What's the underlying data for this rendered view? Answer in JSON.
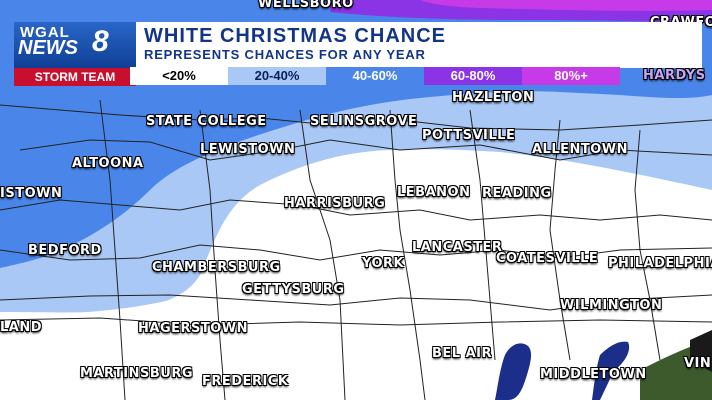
{
  "header": {
    "station_line1": "WGAL",
    "station_line2": "NEWS",
    "station_number": "8",
    "team": "STORM TEAM",
    "title": "WHITE CHRISTMAS CHANCE",
    "subtitle": "REPRESENTS CHANCES FOR ANY YEAR"
  },
  "legend": [
    {
      "label": "<20%",
      "color": "#ffffff",
      "text_color": "#000000"
    },
    {
      "label": "20-40%",
      "color": "#a9c8f5",
      "text_color": "#0a1f5c"
    },
    {
      "label": "40-60%",
      "color": "#4a86ea",
      "text_color": "#ffffff"
    },
    {
      "label": "60-80%",
      "color": "#8a34e6",
      "text_color": "#ffffff"
    },
    {
      "label": "80%+",
      "color": "#c73ae8",
      "text_color": "#ffffff"
    }
  ],
  "cities": [
    {
      "id": "wellsboro",
      "name": "WELLSBORO"
    },
    {
      "id": "crawford",
      "name": "CRAWFO"
    },
    {
      "id": "hardys",
      "name": "HARDYS"
    },
    {
      "id": "hazleton",
      "name": "HAZLETON"
    },
    {
      "id": "state-college",
      "name": "STATE COLLEGE"
    },
    {
      "id": "selinsgrove",
      "name": "SELINSGROVE"
    },
    {
      "id": "pottsville",
      "name": "POTTSVILLE"
    },
    {
      "id": "altoona",
      "name": "ALTOONA"
    },
    {
      "id": "lewistown",
      "name": "LEWISTOWN"
    },
    {
      "id": "allentown",
      "name": "ALLENTOWN"
    },
    {
      "id": "johnstown",
      "name": "ISTOWN"
    },
    {
      "id": "harrisburg",
      "name": "HARRISBURG"
    },
    {
      "id": "lebanon",
      "name": "LEBANON"
    },
    {
      "id": "reading",
      "name": "READING"
    },
    {
      "id": "bedford",
      "name": "BEDFORD"
    },
    {
      "id": "lancaster",
      "name": "LANCASTER"
    },
    {
      "id": "coatesville",
      "name": "COATESVILLE"
    },
    {
      "id": "chambersburg",
      "name": "CHAMBERSBURG"
    },
    {
      "id": "york",
      "name": "YORK"
    },
    {
      "id": "philadelphia",
      "name": "PHILADELPHIA"
    },
    {
      "id": "gettysburg",
      "name": "GETTYSBURG"
    },
    {
      "id": "wilmington",
      "name": "WILMINGTON"
    },
    {
      "id": "cumberland",
      "name": "LAND"
    },
    {
      "id": "hagerstown",
      "name": "HAGERSTOWN"
    },
    {
      "id": "bel-air",
      "name": "BEL AIR"
    },
    {
      "id": "martinsburg",
      "name": "MARTINSBURG"
    },
    {
      "id": "frederick",
      "name": "FREDERICK"
    },
    {
      "id": "middletown",
      "name": "MIDDLETOWN"
    },
    {
      "id": "vineland",
      "name": "VIN"
    }
  ]
}
